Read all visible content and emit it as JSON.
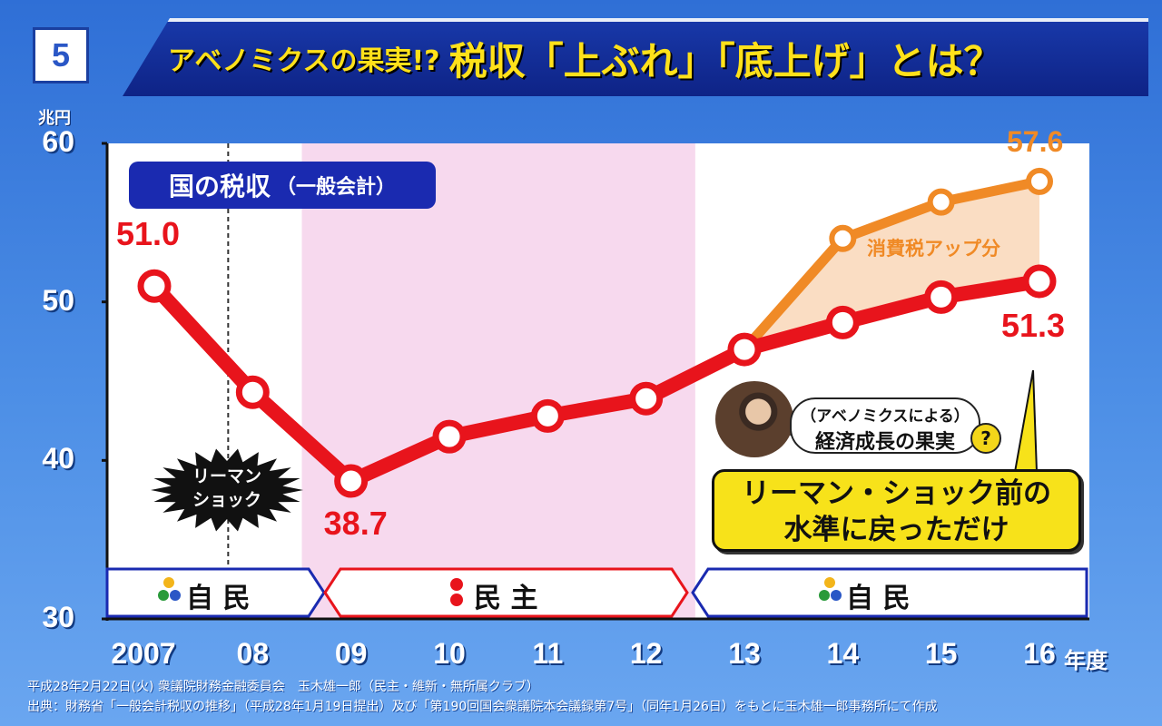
{
  "slide_number": "5",
  "header": {
    "title_prefix": "アベノミクスの果実!?",
    "title_main": "税収「上ぶれ」「底上げ」とは？"
  },
  "chart_data": {
    "type": "line",
    "title": "国の税収",
    "subtitle": "（一般会計）",
    "ylabel": "兆円",
    "xlabel": "年度",
    "ylim": [
      30,
      60
    ],
    "yticks": [
      30,
      40,
      50,
      60
    ],
    "x": [
      "2007",
      "08",
      "09",
      "10",
      "11",
      "12",
      "13",
      "14",
      "15",
      "16"
    ],
    "series": [
      {
        "name": "",
        "color": "#e8141c",
        "values": [
          51.0,
          44.3,
          38.7,
          41.5,
          42.8,
          43.9,
          47.0,
          48.7,
          50.3,
          51.3
        ]
      },
      {
        "name": "",
        "color": "#f08a26",
        "x": [
          "13",
          "14",
          "15",
          "16"
        ],
        "values": [
          47.0,
          54.0,
          56.3,
          57.6
        ]
      }
    ],
    "data_labels": [
      {
        "x": "2007",
        "text": "51.0",
        "color": "#e8141c"
      },
      {
        "x": "09",
        "text": "38.7",
        "color": "#e8141c"
      },
      {
        "x": "16",
        "text": "51.3",
        "color": "#e8141c"
      },
      {
        "x": "16",
        "text": "57.6",
        "color": "#f08a26"
      }
    ],
    "shaded_region": {
      "from": "09",
      "to": "12",
      "color": "#f7d9ee"
    },
    "dashed_line_x": "08",
    "annotations": {
      "tax_increase": "消費税アップ分",
      "lehman": "リーマン・ショック",
      "lehman_line1": "リーマン",
      "lehman_line2": "ショック",
      "bubble_line1": "（アベノミクスによる）",
      "bubble_line2": "経済成長の果実",
      "bubble_q": "?",
      "callout_line1": "リーマン・ショック前の",
      "callout_line2": "水準に戻っただけ"
    },
    "eras": [
      {
        "label": "自 民",
        "from": "2007",
        "to": "08",
        "color": "#1a2ab0"
      },
      {
        "label": "民 主",
        "from": "09",
        "to": "12",
        "color": "#e8141c"
      },
      {
        "label": "自 民",
        "from": "13",
        "to": "16",
        "color": "#1a2ab0"
      }
    ]
  },
  "footer": {
    "line1": "平成28年2月22日(火) 衆議院財務金融委員会　玉木雄一郎（民主・維新・無所属クラブ）",
    "line2": "出典：財務省「一般会計税収の推移」（平成28年1月19日提出）及び「第190回国会衆議院本会議録第7号」（同年1月26日）をもとに玉木雄一郎事務所にて作成"
  },
  "colors": {
    "banner": "#0e2386",
    "title_yellow": "#ffe11a",
    "red_series": "#e8141c",
    "orange_series": "#f08a26",
    "shade_dpj": "#f7d9ee",
    "background": "#3b7ddf"
  }
}
